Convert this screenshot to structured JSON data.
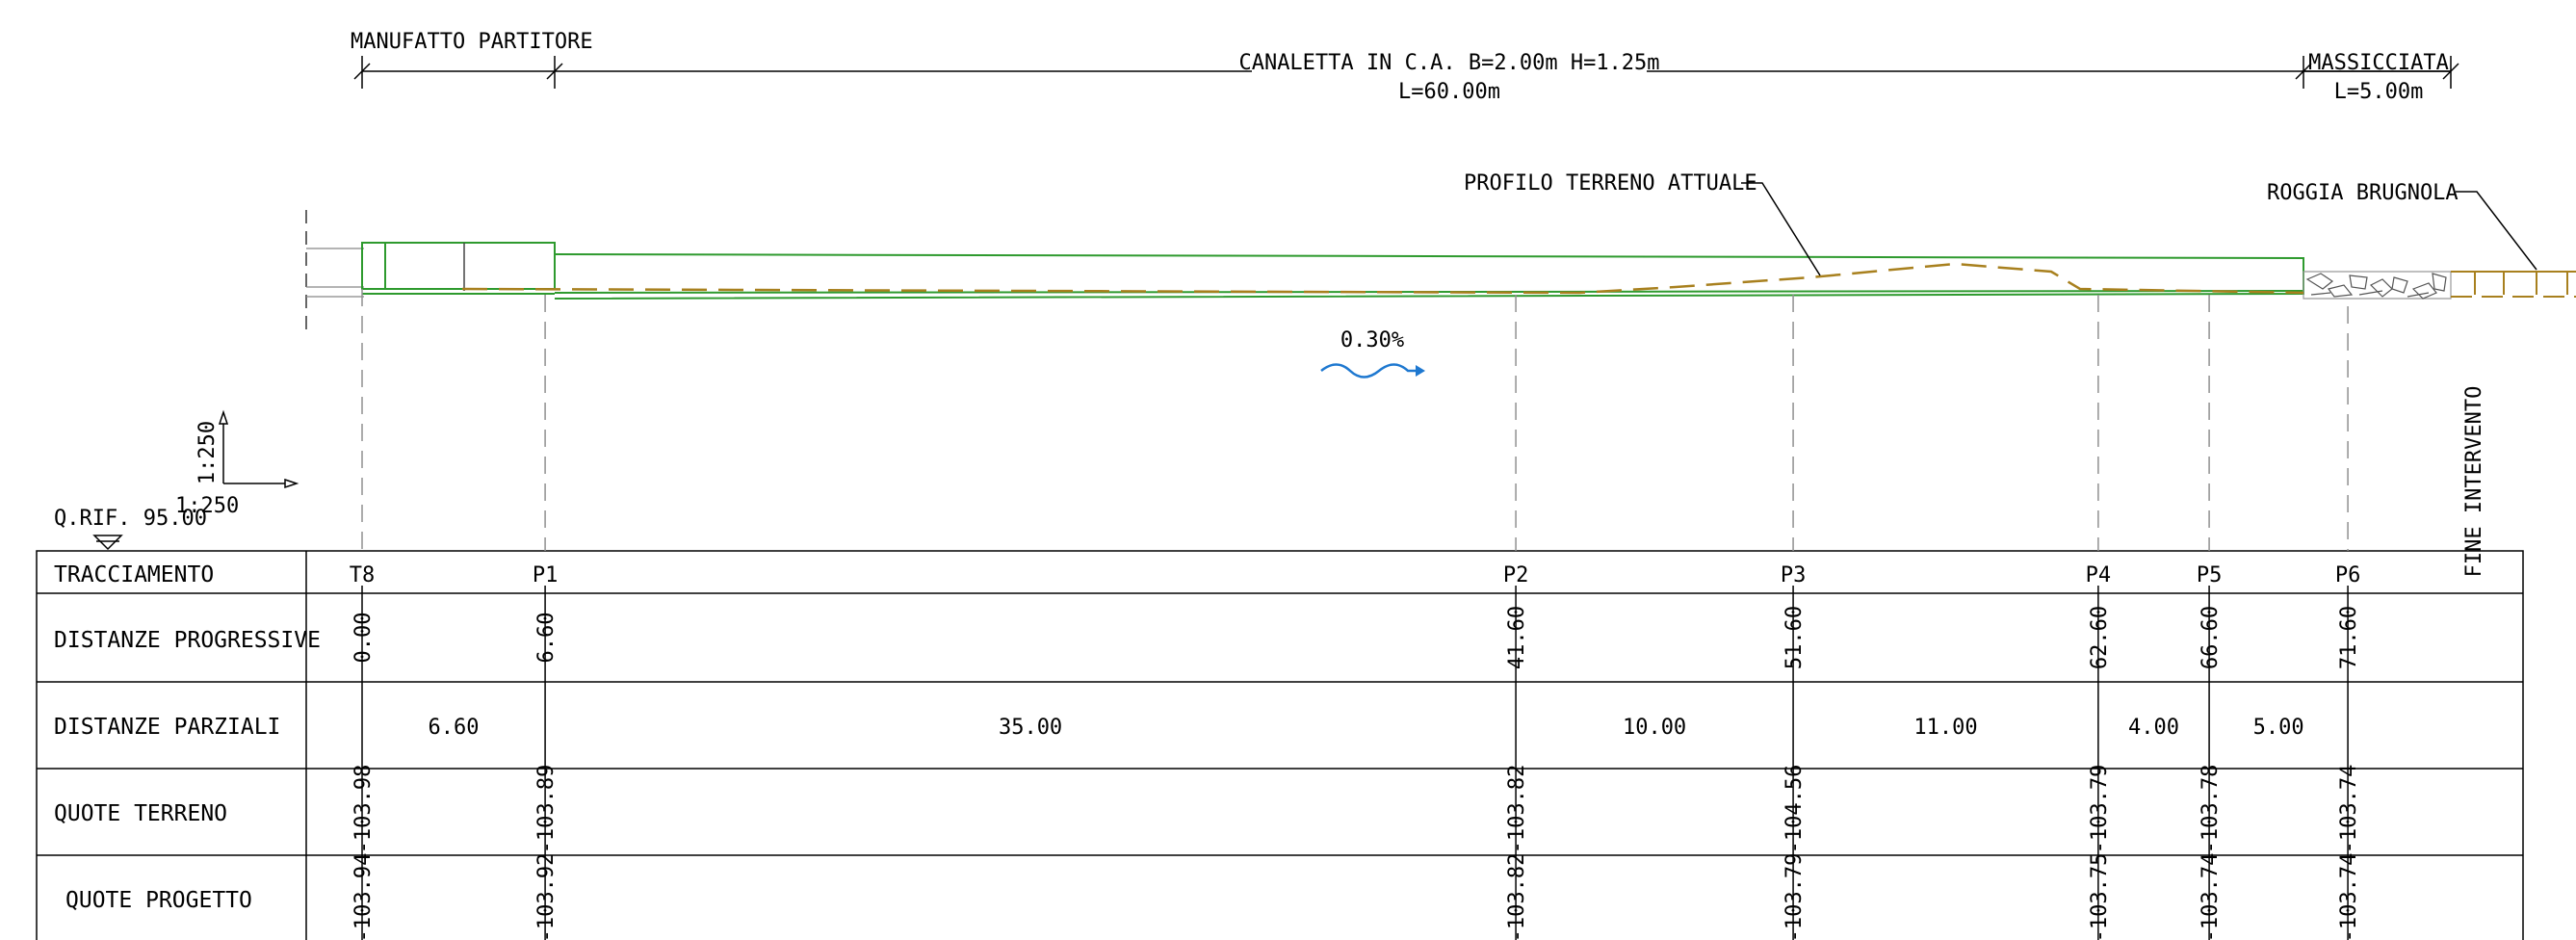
{
  "top_labels": {
    "manufatto": "MANUFATTO  PARTITORE",
    "canaletta_line1": "CANALETTA  IN  C.A.  B=2.00m  H=1.25m",
    "canaletta_line2": "L=60.00m",
    "massicciata_line1": "MASSICCIATA",
    "massicciata_line2": "L=5.00m"
  },
  "annotations": {
    "profilo": "PROFILO  TERRENO  ATTUALE",
    "roggia": "ROGGIA  BRUGNOLA",
    "slope": "0.30%",
    "fine_intervento": "FINE  INTERVENTO"
  },
  "scale": {
    "vertical": "1:250",
    "horizontal": "1:250"
  },
  "reference": "Q.RIF.  95.00",
  "table": {
    "rows": [
      "TRACCIAMENTO",
      "DISTANZE  PROGRESSIVE",
      "DISTANZE  PARZIALI",
      "QUOTE  TERRENO",
      "QUOTE  PROGETTO"
    ],
    "stations": [
      {
        "name": "T8",
        "progressiva": "0.00",
        "terreno": "103.98",
        "progetto": "103.94"
      },
      {
        "name": "P1",
        "progressiva": "6.60",
        "terreno": "103.89",
        "progetto": "103.92"
      },
      {
        "name": "P2",
        "progressiva": "41.60",
        "terreno": "103.82",
        "progetto": "103.82"
      },
      {
        "name": "P3",
        "progressiva": "51.60",
        "terreno": "104.56",
        "progetto": "103.79"
      },
      {
        "name": "P4",
        "progressiva": "62.60",
        "terreno": "103.79",
        "progetto": "103.75"
      },
      {
        "name": "P5",
        "progressiva": "66.60",
        "terreno": "103.78",
        "progetto": "103.74"
      },
      {
        "name": "P6",
        "progressiva": "71.60",
        "terreno": "103.74",
        "progetto": "103.74"
      }
    ],
    "parziali": [
      "6.60",
      "35.00",
      "10.00",
      "11.00",
      "4.00",
      "5.00"
    ]
  },
  "colors": {
    "structure": "#2e9a2e",
    "terrain": "#a8801e",
    "flow": "#1e78d0",
    "line": "#000000",
    "dashed": "#909090"
  }
}
